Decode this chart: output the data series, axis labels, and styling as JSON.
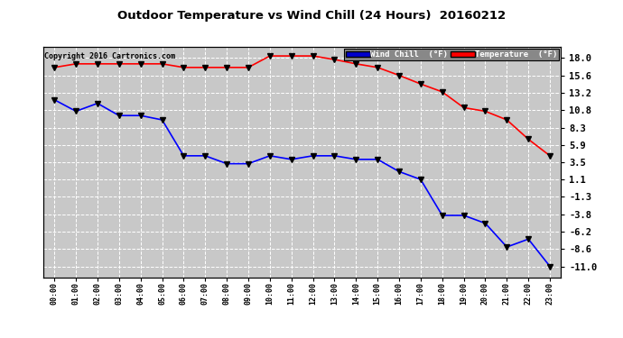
{
  "title": "Outdoor Temperature vs Wind Chill (24 Hours)  20160212",
  "copyright": "Copyright 2016 Cartronics.com",
  "x_labels": [
    "00:00",
    "01:00",
    "02:00",
    "03:00",
    "04:00",
    "05:00",
    "06:00",
    "07:00",
    "08:00",
    "09:00",
    "10:00",
    "11:00",
    "12:00",
    "13:00",
    "14:00",
    "15:00",
    "16:00",
    "17:00",
    "18:00",
    "19:00",
    "20:00",
    "21:00",
    "22:00",
    "23:00"
  ],
  "temp_y": [
    16.7,
    17.2,
    17.2,
    17.2,
    17.2,
    17.2,
    16.7,
    16.7,
    16.7,
    16.7,
    18.3,
    18.3,
    18.3,
    17.8,
    17.2,
    16.7,
    15.6,
    14.4,
    13.3,
    11.1,
    10.6,
    9.4,
    6.7,
    4.4
  ],
  "wind_y": [
    12.2,
    10.6,
    11.7,
    10.0,
    10.0,
    9.4,
    4.4,
    4.4,
    3.3,
    3.3,
    4.4,
    3.9,
    4.4,
    4.4,
    3.9,
    3.9,
    2.2,
    1.1,
    -3.9,
    -3.9,
    -5.0,
    -8.3,
    -7.2,
    -11.0
  ],
  "ylim": [
    -12.5,
    19.5
  ],
  "yticks": [
    18.0,
    15.6,
    13.2,
    10.8,
    8.3,
    5.9,
    3.5,
    1.1,
    -1.3,
    -3.8,
    -6.2,
    -8.6,
    -11.0
  ],
  "temp_color": "#FF0000",
  "wind_color": "#0000FF",
  "bg_color": "#FFFFFF",
  "plot_bg_color": "#C8C8C8",
  "grid_color": "#FFFFFF",
  "legend_wind_bg": "#0000CD",
  "legend_temp_bg": "#FF0000",
  "legend_text_color": "#FFFFFF"
}
